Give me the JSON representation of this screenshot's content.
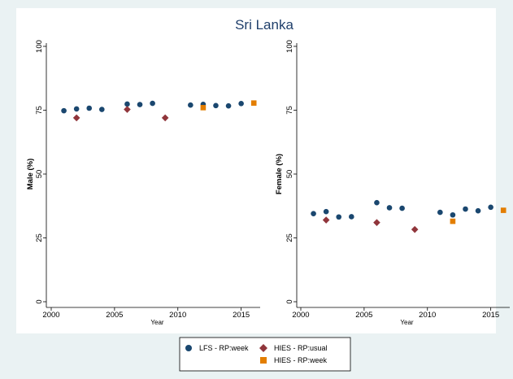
{
  "colors": {
    "background": "#eaf2f3",
    "panel": "#ffffff",
    "lfs": "#1a476f",
    "hies_usual": "#90353b",
    "hies_week": "#e37e00",
    "title": "#1f3f6b"
  },
  "chart_data": {
    "title": "Sri Lanka",
    "legend": {
      "placement": "bottom",
      "items": [
        {
          "label": "LFS - RP:week",
          "marker": "circle",
          "color": "#1a476f"
        },
        {
          "label": "HIES - RP:usual",
          "marker": "diamond",
          "color": "#90353b"
        },
        {
          "label": "HIES - RP:week",
          "marker": "square",
          "color": "#e37e00"
        }
      ]
    },
    "panels": [
      {
        "type": "scatter",
        "xlabel": "Year",
        "ylabel": "Male (%)",
        "xlim": [
          2000,
          2016.5
        ],
        "ylim": [
          0,
          100
        ],
        "xticks": [
          "2000",
          "2005",
          "2010",
          "2015"
        ],
        "yticks": [
          "0",
          "25",
          "50",
          "75",
          "100"
        ],
        "series": [
          {
            "name": "LFS - RP:week",
            "marker": "circle",
            "x": [
              2001,
              2002,
              2003,
              2004,
              2006,
              2007,
              2008,
              2011,
              2012,
              2013,
              2014,
              2015
            ],
            "y": [
              74.8,
              75.5,
              75.8,
              75.3,
              77.4,
              77.2,
              77.7,
              77.0,
              77.3,
              76.8,
              76.7,
              77.6
            ]
          },
          {
            "name": "HIES - RP:usual",
            "marker": "diamond",
            "x": [
              2002,
              2006,
              2009
            ],
            "y": [
              72.0,
              75.3,
              72.0
            ]
          },
          {
            "name": "HIES - RP:week",
            "marker": "square",
            "x": [
              2012,
              2016
            ],
            "y": [
              76.0,
              77.8
            ]
          }
        ]
      },
      {
        "type": "scatter",
        "xlabel": "Year",
        "ylabel": "Female (%)",
        "xlim": [
          2000,
          2016.5
        ],
        "ylim": [
          0,
          100
        ],
        "xticks": [
          "2000",
          "2005",
          "2010",
          "2015"
        ],
        "yticks": [
          "0",
          "25",
          "50",
          "75",
          "100"
        ],
        "series": [
          {
            "name": "LFS - RP:week",
            "marker": "circle",
            "x": [
              2001,
              2002,
              2003,
              2004,
              2006,
              2007,
              2008,
              2011,
              2012,
              2013,
              2014,
              2015
            ],
            "y": [
              34.5,
              35.3,
              33.2,
              33.3,
              38.8,
              36.8,
              36.6,
              35.0,
              34.0,
              36.3,
              35.6,
              37.0
            ]
          },
          {
            "name": "HIES - RP:usual",
            "marker": "diamond",
            "x": [
              2002,
              2006,
              2009
            ],
            "y": [
              32.0,
              31.0,
              28.3
            ]
          },
          {
            "name": "HIES - RP:week",
            "marker": "square",
            "x": [
              2012,
              2016
            ],
            "y": [
              31.5,
              35.8
            ]
          }
        ]
      }
    ]
  }
}
